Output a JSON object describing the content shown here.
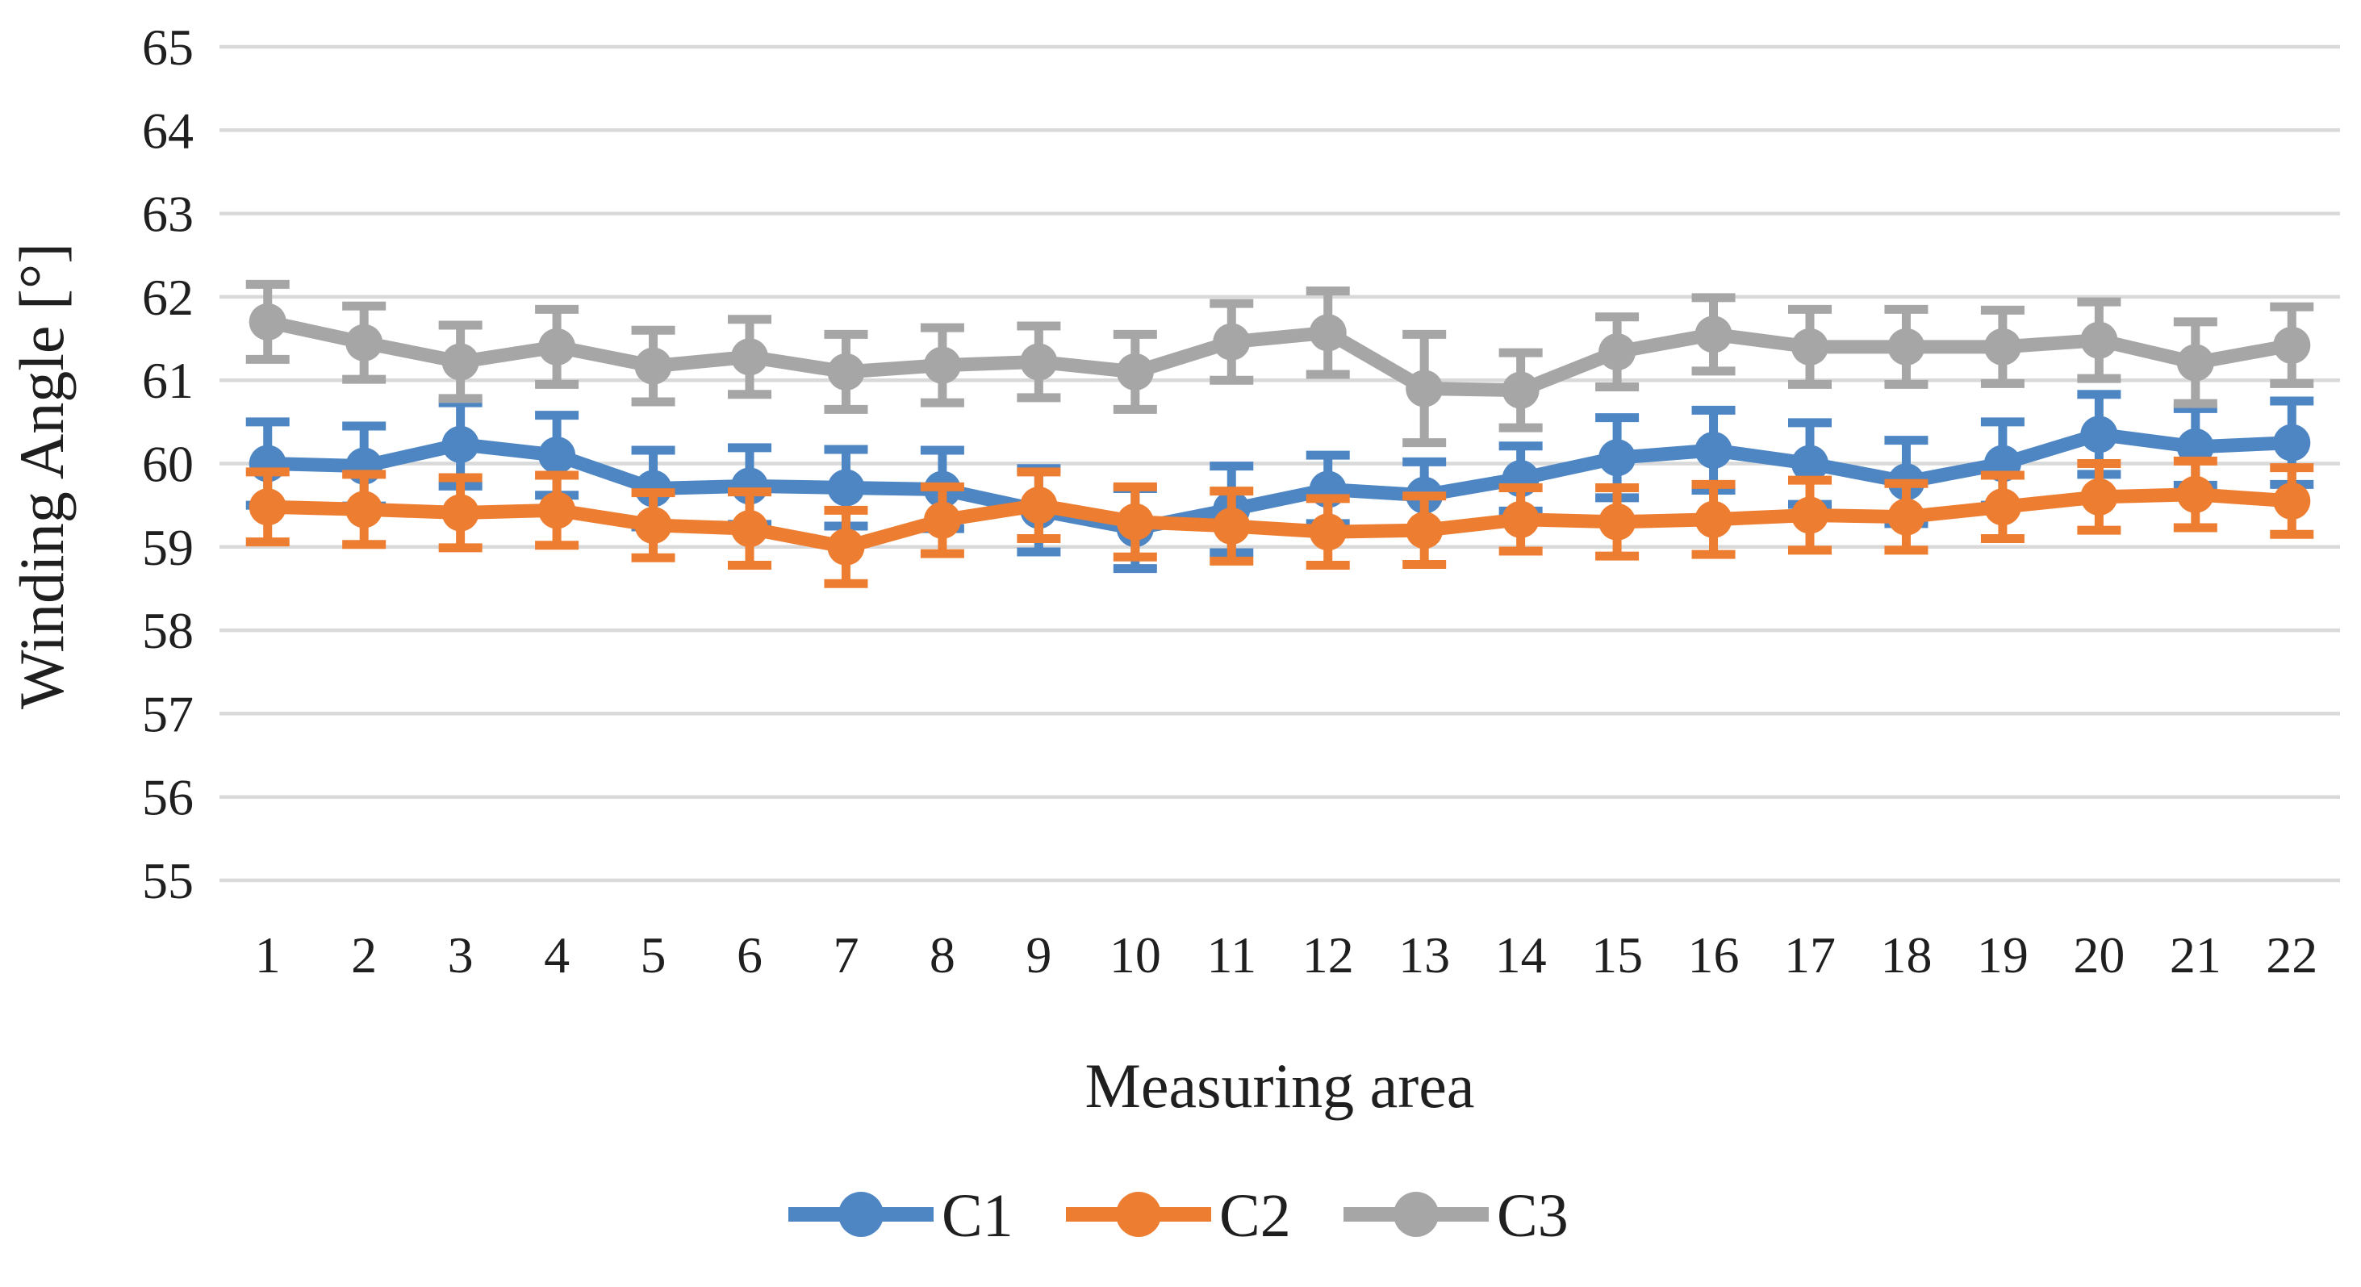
{
  "figure": {
    "background": "#ffffff"
  },
  "chart_data": {
    "type": "line",
    "title": "",
    "xlabel": "Measuring area",
    "ylabel": "Winding Angle [°]",
    "categories": [
      "1",
      "2",
      "3",
      "4",
      "5",
      "6",
      "7",
      "8",
      "9",
      "10",
      "11",
      "12",
      "13",
      "14",
      "15",
      "16",
      "17",
      "18",
      "19",
      "20",
      "21",
      "22"
    ],
    "y_ticks": [
      55,
      56,
      57,
      58,
      59,
      60,
      61,
      62,
      63,
      64,
      65
    ],
    "ylim": [
      55,
      65
    ],
    "grid": true,
    "error_bars": true,
    "legend_position": "bottom-center",
    "marker": "circle",
    "series": [
      {
        "name": "C1",
        "color": "#4E86C4",
        "values": [
          60.0,
          59.97,
          60.23,
          60.1,
          59.7,
          59.73,
          59.71,
          59.69,
          59.44,
          59.22,
          59.45,
          59.69,
          59.62,
          59.82,
          60.07,
          60.16,
          60.0,
          59.78,
          60.0,
          60.35,
          60.2,
          60.25
        ],
        "errors": [
          0.5,
          0.48,
          0.5,
          0.48,
          0.46,
          0.46,
          0.46,
          0.47,
          0.5,
          0.48,
          0.52,
          0.41,
          0.4,
          0.39,
          0.48,
          0.48,
          0.49,
          0.5,
          0.5,
          0.48,
          0.46,
          0.5
        ]
      },
      {
        "name": "C2",
        "color": "#ED7D31",
        "values": [
          59.48,
          59.45,
          59.41,
          59.44,
          59.26,
          59.22,
          59.0,
          59.32,
          59.5,
          59.3,
          59.25,
          59.18,
          59.2,
          59.33,
          59.3,
          59.33,
          59.38,
          59.36,
          59.48,
          59.6,
          59.63,
          59.55
        ],
        "errors": [
          0.42,
          0.42,
          0.42,
          0.42,
          0.39,
          0.44,
          0.44,
          0.4,
          0.4,
          0.42,
          0.42,
          0.4,
          0.41,
          0.38,
          0.41,
          0.42,
          0.42,
          0.4,
          0.38,
          0.4,
          0.4,
          0.4
        ]
      },
      {
        "name": "C3",
        "color": "#A6A6A6",
        "values": [
          61.7,
          61.45,
          61.22,
          61.4,
          61.17,
          61.28,
          61.1,
          61.18,
          61.22,
          61.1,
          61.46,
          61.57,
          60.9,
          60.88,
          61.34,
          61.55,
          61.4,
          61.4,
          61.4,
          61.48,
          61.21,
          61.42
        ],
        "errors": [
          0.45,
          0.44,
          0.44,
          0.45,
          0.43,
          0.45,
          0.45,
          0.45,
          0.43,
          0.45,
          0.46,
          0.5,
          0.65,
          0.45,
          0.42,
          0.44,
          0.45,
          0.45,
          0.44,
          0.46,
          0.49,
          0.46
        ]
      }
    ]
  },
  "style": {
    "gridline_color": "#D9D9D9",
    "text_color": "#1f1f1f",
    "background": "#ffffff"
  }
}
